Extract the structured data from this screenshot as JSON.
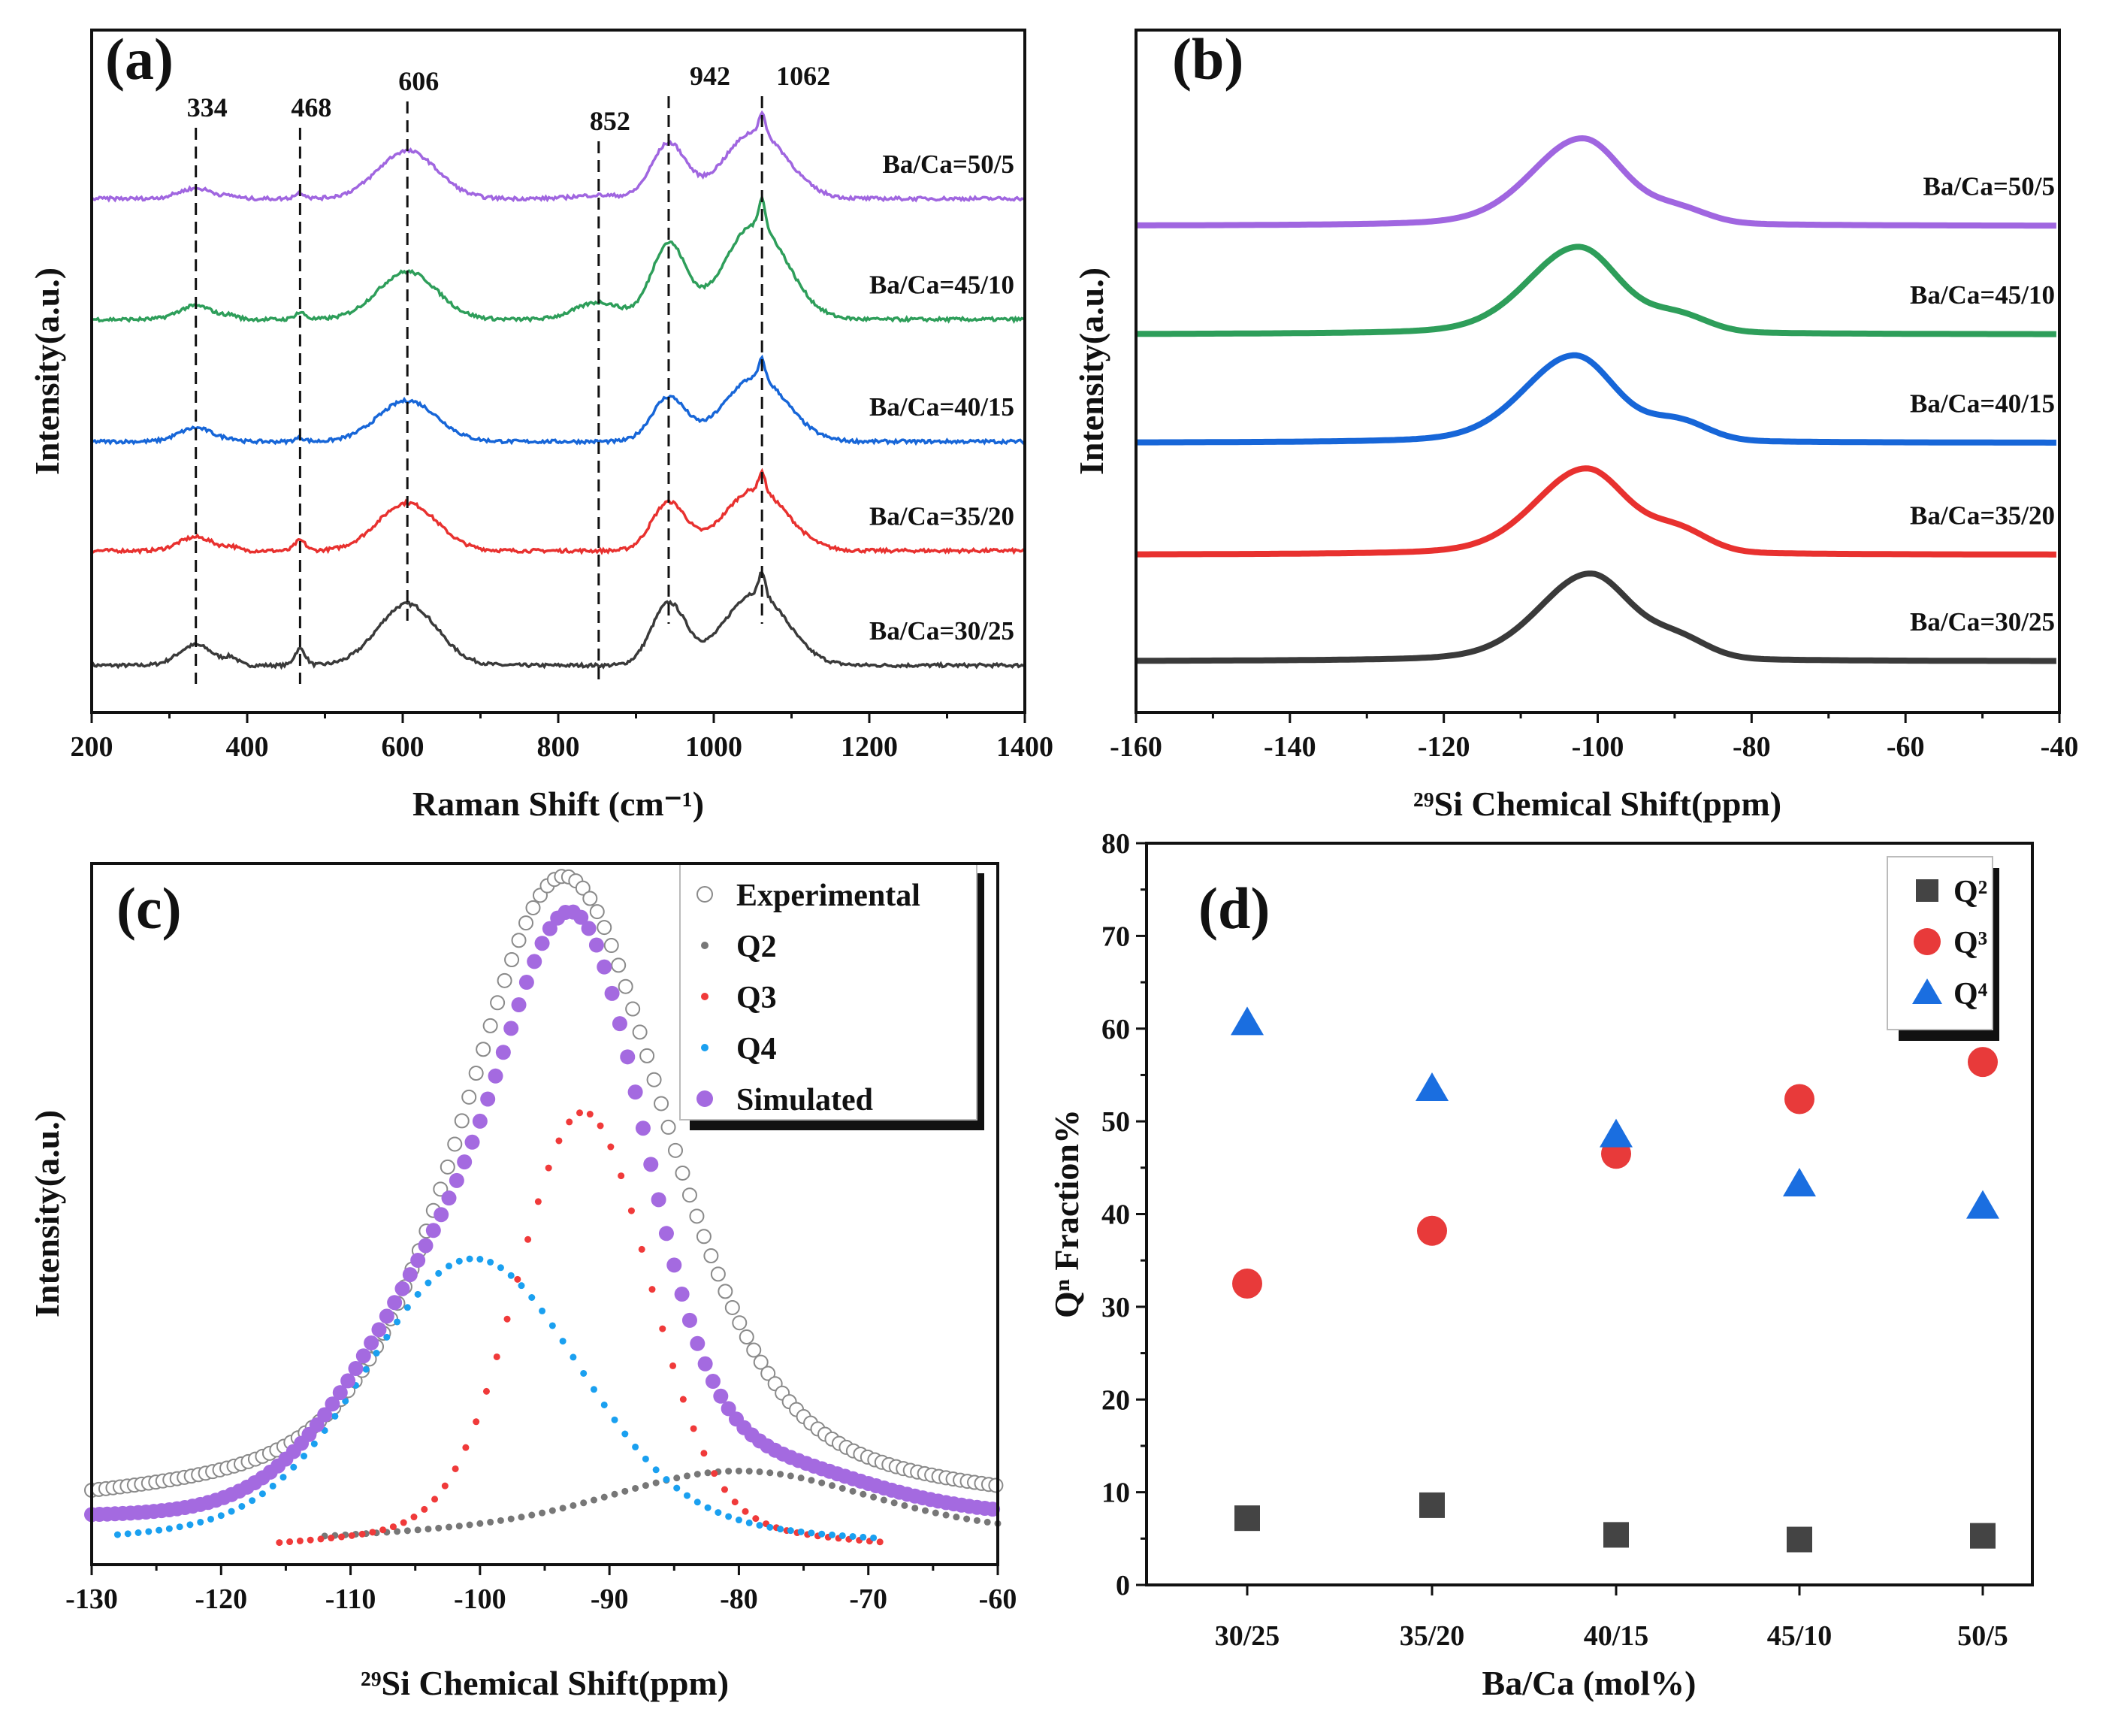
{
  "chart_data": [
    {
      "panel": "(a)",
      "type": "line",
      "xlabel": "Raman Shift (cm⁻¹)",
      "ylabel": "Intensity(a.u.)",
      "xlim": [
        200,
        1400
      ],
      "xticks": [
        200,
        400,
        600,
        800,
        1000,
        1200,
        1400
      ],
      "peak_markers": [
        334,
        468,
        606,
        852,
        942,
        1062
      ],
      "series": [
        {
          "name": "Ba/Ca=30/25",
          "color": "#3a3a3a",
          "offset": 0.69,
          "peaks": {
            "334": 0.3,
            "380": 0.1,
            "468": 0.24,
            "606": 0.9,
            "942": 0.9,
            "1062": 1.3
          }
        },
        {
          "name": "Ba/Ca=35/20",
          "color": "#e8312f",
          "offset": 2.37,
          "peaks": {
            "334": 0.2,
            "380": 0.05,
            "468": 0.15,
            "606": 0.7,
            "942": 0.7,
            "1062": 1.1
          }
        },
        {
          "name": "Ba/Ca=40/15",
          "color": "#1766d8",
          "offset": 3.97,
          "peaks": {
            "334": 0.2,
            "380": 0.03,
            "468": 0.05,
            "606": 0.6,
            "942": 0.64,
            "1062": 1.15
          }
        },
        {
          "name": "Ba/Ca=45/10",
          "color": "#2e9e5a",
          "offset": 5.76,
          "peaks": {
            "334": 0.2,
            "380": 0.05,
            "468": 0.1,
            "606": 0.7,
            "852": 0.25,
            "942": 1.1,
            "1062": 1.7
          }
        },
        {
          "name": "Ba/Ca=50/5",
          "color": "#a066e0",
          "offset": 7.53,
          "peaks": {
            "334": 0.15,
            "380": 0.03,
            "468": 0.08,
            "606": 0.7,
            "852": 0.05,
            "942": 0.8,
            "1062": 1.2
          }
        }
      ]
    },
    {
      "panel": "(b)",
      "type": "line",
      "xlabel": "²⁹Si Chemical Shift(ppm)",
      "ylabel": "Intensity(a.u.)",
      "xlim": [
        -160,
        -40
      ],
      "xticks": [
        -160,
        -140,
        -120,
        -100,
        -80,
        -60,
        -40
      ],
      "series": [
        {
          "name": "Ba/Ca=30/25",
          "color": "#3a3a3a",
          "offset": 0.75,
          "center": -101,
          "height": 1.38,
          "shoulder": 0.35
        },
        {
          "name": "Ba/Ca=35/20",
          "color": "#e8312f",
          "offset": 2.31,
          "center": -101.5,
          "height": 1.36,
          "shoulder": 0.4
        },
        {
          "name": "Ba/Ca=40/15",
          "color": "#1766d8",
          "offset": 3.95,
          "center": -103,
          "height": 1.38,
          "shoulder": 0.35
        },
        {
          "name": "Ba/Ca=45/10",
          "color": "#2e9e5a",
          "offset": 5.54,
          "center": -102.5,
          "height": 1.38,
          "shoulder": 0.3
        },
        {
          "name": "Ba/Ca=50/5",
          "color": "#a066e0",
          "offset": 7.13,
          "center": -102,
          "height": 1.38,
          "shoulder": 0.25
        }
      ]
    },
    {
      "panel": "(c)",
      "type": "scatter",
      "xlabel": "²⁹Si Chemical Shift(ppm)",
      "ylabel": "Intensity(a.u.)",
      "xlim": [
        -130,
        -60
      ],
      "xticks": [
        -130,
        -120,
        -110,
        -100,
        -90,
        -80,
        -70,
        -60
      ],
      "baseline": 0.07,
      "series": [
        {
          "name": "Experimental",
          "color": "#888888",
          "center": -93.5,
          "amplitude": 0.97,
          "fwhm": 19
        },
        {
          "name": "Q2",
          "color": "#777777",
          "center": -80,
          "amplitude": 0.077,
          "sigma": 9
        },
        {
          "name": "Q3",
          "color": "#f03a3a",
          "center": -92,
          "amplitude": 0.64,
          "sigma": 5
        },
        {
          "name": "Q4",
          "color": "#1aa0f0",
          "center": -100.5,
          "amplitude": 0.41,
          "sigma": 8
        },
        {
          "name": "Simulated",
          "color": "#a46ae0"
        }
      ]
    },
    {
      "panel": "(d)",
      "type": "scatter",
      "xlabel": "Ba/Ca (mol%)",
      "ylabel": "Qⁿ Fraction%",
      "ylim": [
        0,
        80
      ],
      "yticks": [
        0,
        10,
        20,
        30,
        40,
        50,
        60,
        70,
        80
      ],
      "categories": [
        "30/25",
        "35/20",
        "40/15",
        "45/10",
        "50/5"
      ],
      "series": [
        {
          "name": "Q²",
          "marker": "square",
          "color": "#444444",
          "values": [
            7.2,
            8.6,
            5.4,
            4.9,
            5.3
          ]
        },
        {
          "name": "Q³",
          "marker": "circle",
          "color": "#e83a3a",
          "values": [
            32.5,
            38.2,
            46.5,
            52.4,
            56.4
          ]
        },
        {
          "name": "Q⁴",
          "marker": "triangle",
          "color": "#1a6ee0",
          "values": [
            60.6,
            53.5,
            48.5,
            43.2,
            40.8
          ]
        }
      ]
    }
  ]
}
